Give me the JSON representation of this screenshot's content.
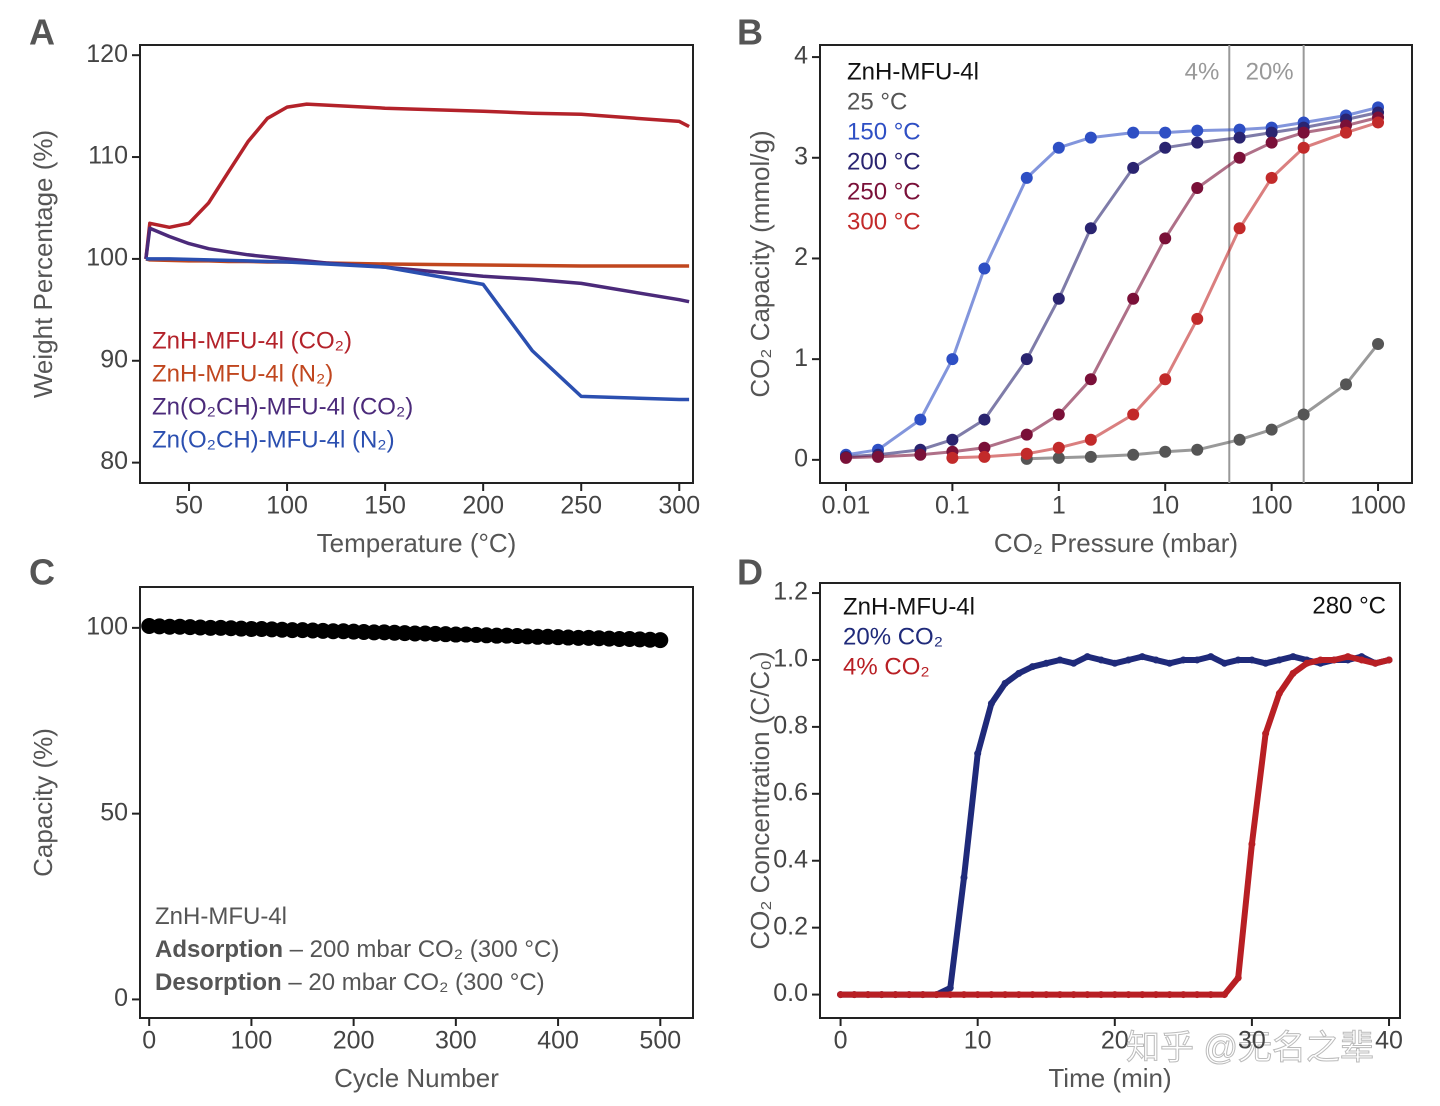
{
  "chart_data": [
    {
      "type": "line",
      "panel": "A",
      "xlabel": "Temperature (°C)",
      "ylabel": "Weight Percentage (%)",
      "xlim": [
        25,
        307
      ],
      "ylim": [
        78,
        121
      ],
      "xticks": [
        50,
        100,
        150,
        200,
        250,
        300
      ],
      "yticks": [
        80,
        90,
        100,
        110,
        120
      ],
      "legend": "lower left",
      "x": [
        28,
        30,
        40,
        50,
        60,
        70,
        80,
        90,
        100,
        110,
        120,
        150,
        200,
        225,
        250,
        300,
        305
      ],
      "series": [
        {
          "name": "ZnH-MFU-4l (CO₂)",
          "color": "#b3222a",
          "values": [
            100,
            103.5,
            103.1,
            103.5,
            105.5,
            108.5,
            111.5,
            113.8,
            114.9,
            115.2,
            115.1,
            114.8,
            114.5,
            114.3,
            114.2,
            113.5,
            113
          ]
        },
        {
          "name": "ZnH-MFU-4l (N₂)",
          "color": "#c0461e",
          "values": [
            100,
            99.9,
            99.85,
            99.8,
            99.8,
            99.75,
            99.75,
            99.7,
            99.7,
            99.65,
            99.6,
            99.5,
            99.4,
            99.35,
            99.3,
            99.3,
            99.3
          ]
        },
        {
          "name": "Zn(O₂CH)-MFU-4l (CO₂)",
          "color": "#4b2a7a",
          "values": [
            100,
            103,
            102.2,
            101.5,
            101,
            100.7,
            100.4,
            100.2,
            100,
            99.8,
            99.6,
            99.2,
            98.3,
            98,
            97.6,
            96,
            95.8
          ]
        },
        {
          "name": "Zn(O₂CH)-MFU-4l (N₂)",
          "color": "#2b4fb0",
          "values": [
            100,
            100,
            100,
            99.95,
            99.9,
            99.85,
            99.8,
            99.75,
            99.7,
            99.6,
            99.5,
            99.2,
            97.5,
            91,
            86.5,
            86.2,
            86.2
          ]
        }
      ]
    },
    {
      "type": "line",
      "panel": "B",
      "markers": true,
      "xlabel": "CO₂ Pressure (mbar)",
      "ylabel": "CO₂ Capacity (mmol/g)",
      "log_x": true,
      "xlim": [
        0.0057,
        2085
      ],
      "ylim": [
        -0.23,
        4.12
      ],
      "xticks": [
        0.01,
        0.1,
        1,
        10,
        100,
        1000
      ],
      "yticks": [
        0,
        1,
        2,
        3,
        4
      ],
      "legend": "upper left",
      "legend_title": "ZnH-MFU-4l",
      "vlines": [
        {
          "x": 40,
          "label": "4%"
        },
        {
          "x": 200,
          "label": "20%"
        }
      ],
      "vline_color": "#999999",
      "x": [
        0.01,
        0.02,
        0.05,
        0.1,
        0.2,
        0.5,
        1,
        2,
        5,
        10,
        20,
        50,
        100,
        200,
        500,
        1000
      ],
      "series": [
        {
          "name": "25 °C",
          "color": "#555555",
          "values": [
            null,
            null,
            null,
            null,
            null,
            0.01,
            0.02,
            0.03,
            0.05,
            0.08,
            0.1,
            0.2,
            0.3,
            0.45,
            0.75,
            1.15
          ]
        },
        {
          "name": "150 °C",
          "color": "#2e4fc4",
          "values": [
            0.05,
            0.1,
            0.4,
            1.0,
            1.9,
            2.8,
            3.1,
            3.2,
            3.25,
            3.25,
            3.27,
            3.28,
            3.3,
            3.35,
            3.42,
            3.5
          ]
        },
        {
          "name": "200 °C",
          "color": "#2a2470",
          "values": [
            0.03,
            0.05,
            0.1,
            0.2,
            0.4,
            1.0,
            1.6,
            2.3,
            2.9,
            3.1,
            3.15,
            3.2,
            3.25,
            3.3,
            3.38,
            3.45
          ]
        },
        {
          "name": "250 °C",
          "color": "#7a1038",
          "values": [
            0.02,
            0.03,
            0.05,
            0.08,
            0.12,
            0.25,
            0.45,
            0.8,
            1.6,
            2.2,
            2.7,
            3.0,
            3.15,
            3.25,
            3.32,
            3.4
          ]
        },
        {
          "name": "300 °C",
          "color": "#c22a2a",
          "values": [
            null,
            null,
            null,
            0.02,
            0.03,
            0.06,
            0.12,
            0.2,
            0.45,
            0.8,
            1.4,
            2.3,
            2.8,
            3.1,
            3.25,
            3.35
          ]
        }
      ]
    },
    {
      "type": "scatter",
      "panel": "C",
      "xlabel": "Cycle Number",
      "ylabel": "Capacity (%)",
      "xlim": [
        -9,
        532
      ],
      "ylim": [
        -5,
        111
      ],
      "xticks": [
        0,
        100,
        200,
        300,
        400,
        500
      ],
      "yticks": [
        0,
        50,
        100
      ],
      "annotation_lines": [
        {
          "text": "ZnH-MFU-4l"
        },
        {
          "bold": "Adsorption",
          "text": " – 200 mbar CO₂ (300 °C)"
        },
        {
          "bold": "Desorption",
          "text": " – 20 mbar CO₂ (300 °C)"
        }
      ],
      "x": [
        0,
        10,
        20,
        30,
        40,
        50,
        60,
        70,
        80,
        90,
        100,
        110,
        120,
        130,
        140,
        150,
        160,
        170,
        180,
        190,
        200,
        210,
        220,
        230,
        240,
        250,
        260,
        270,
        280,
        290,
        300,
        310,
        320,
        330,
        340,
        350,
        360,
        370,
        380,
        390,
        400,
        410,
        420,
        430,
        440,
        450,
        460,
        470,
        480,
        490,
        500
      ],
      "series": [
        {
          "color": "#000000",
          "values": [
            100.5,
            100.4,
            100.3,
            100.3,
            100.2,
            100.1,
            100.0,
            100.0,
            99.9,
            99.8,
            99.7,
            99.7,
            99.6,
            99.5,
            99.4,
            99.4,
            99.3,
            99.2,
            99.1,
            99.1,
            99.0,
            98.9,
            98.8,
            98.8,
            98.7,
            98.6,
            98.5,
            98.5,
            98.4,
            98.3,
            98.2,
            98.2,
            98.1,
            98.0,
            97.9,
            97.9,
            97.8,
            97.7,
            97.6,
            97.6,
            97.5,
            97.4,
            97.3,
            97.3,
            97.2,
            97.1,
            97.0,
            97.0,
            96.9,
            96.8,
            96.7
          ]
        }
      ]
    },
    {
      "type": "line",
      "panel": "D",
      "markers": true,
      "xlabel": "Time (min)",
      "ylabel": "CO₂ Concentration (C/C₀)",
      "xlim": [
        -1.5,
        40.8
      ],
      "ylim": [
        -0.07,
        1.23
      ],
      "xticks": [
        0,
        10,
        20,
        30,
        40
      ],
      "yticks": [
        {
          "value": 0,
          "label": "0.0"
        },
        0.2,
        0.4,
        0.6,
        0.8,
        {
          "value": 1,
          "label": "1.0"
        },
        1.2
      ],
      "legend": "upper left",
      "legend_title": "ZnH-MFU-4l",
      "annotation": "280 °C",
      "x": [
        0,
        1,
        2,
        3,
        4,
        5,
        6,
        7,
        8,
        9,
        10,
        11,
        12,
        13,
        14,
        15,
        16,
        17,
        18,
        19,
        20,
        21,
        22,
        23,
        24,
        25,
        26,
        27,
        28,
        29,
        30,
        31,
        32,
        33,
        34,
        35,
        36,
        37,
        38,
        39,
        40
      ],
      "series": [
        {
          "name": "20% CO₂",
          "color": "#1f2a7a",
          "values": [
            0,
            0,
            0,
            0,
            0,
            0,
            0,
            0,
            0.02,
            0.35,
            0.72,
            0.87,
            0.93,
            0.96,
            0.98,
            0.99,
            1.0,
            0.99,
            1.01,
            1.0,
            0.99,
            1.0,
            1.01,
            1.0,
            0.99,
            1.0,
            1.0,
            1.01,
            0.99,
            1.0,
            1.0,
            0.99,
            1.0,
            1.01,
            1.0,
            0.99,
            1.0,
            1.0,
            1.01,
            0.99,
            1.0
          ]
        },
        {
          "name": "4% CO₂",
          "color": "#b81f24",
          "values": [
            0,
            0,
            0,
            0,
            0,
            0,
            0,
            0,
            0,
            0,
            0,
            0,
            0,
            0,
            0,
            0,
            0,
            0,
            0,
            0,
            0,
            0,
            0,
            0,
            0,
            0,
            0,
            0,
            0,
            0.05,
            0.45,
            0.78,
            0.9,
            0.96,
            0.99,
            1.0,
            1.0,
            1.01,
            1.0,
            0.99,
            1.0
          ]
        }
      ]
    }
  ],
  "watermark": "知乎 @无名之辈"
}
